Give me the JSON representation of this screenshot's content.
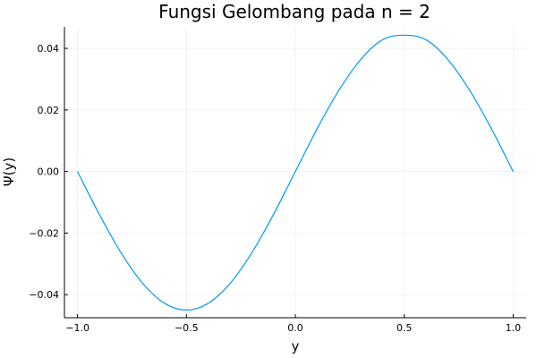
{
  "chart_data": {
    "type": "line",
    "title": "Fungsi Gelombang pada n = 2",
    "xlabel": "y",
    "ylabel": "Ψ(y)",
    "xlim": [
      -1.06,
      1.06
    ],
    "ylim": [
      -0.0475,
      0.047
    ],
    "xticks": [
      -1.0,
      -0.5,
      0.0,
      0.5,
      1.0
    ],
    "xtick_labels": [
      "−1.0",
      "−0.5",
      "0.0",
      "0.5",
      "1.0"
    ],
    "yticks": [
      -0.04,
      -0.02,
      0.0,
      0.02,
      0.04
    ],
    "ytick_labels": [
      "−0.04",
      "−0.02",
      "0.00",
      "0.02",
      "0.04"
    ],
    "grid": true,
    "legend": false,
    "series": [
      {
        "color": "#009AF9",
        "x": [
          -1.0,
          -0.9,
          -0.8,
          -0.7,
          -0.6,
          -0.5,
          -0.4,
          -0.3,
          -0.2,
          -0.1,
          0.0,
          0.1,
          0.2,
          0.3,
          0.4,
          0.5,
          0.6,
          0.7,
          0.8,
          0.9,
          1.0
        ],
        "y": [
          0.0,
          -0.0139,
          -0.0264,
          -0.0364,
          -0.0428,
          -0.045,
          -0.0428,
          -0.0364,
          -0.0264,
          -0.0139,
          0.0,
          0.0139,
          0.0264,
          0.0364,
          0.0428,
          0.0443,
          0.0428,
          0.0364,
          0.0264,
          0.0139,
          0.0
        ]
      }
    ]
  }
}
